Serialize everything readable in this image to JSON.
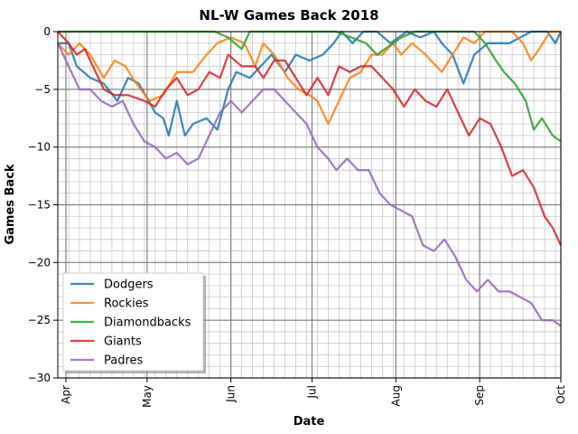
{
  "chart_data": {
    "type": "line",
    "title": "NL-W Games Back 2018",
    "xlabel": "Date",
    "ylabel": "Games Back",
    "x_ticks": [
      "Apr",
      "May",
      "Jun",
      "Jul",
      "Aug",
      "Sep",
      "Oct"
    ],
    "y_ticks": [
      0,
      -5,
      -10,
      -15,
      -20,
      -25,
      -30
    ],
    "ylim": [
      -30,
      0
    ],
    "grid": true,
    "legend_position": "bottom-left",
    "series": [
      {
        "name": "Dodgers",
        "color": "#1f77b4",
        "points": [
          [
            "2018-03-29",
            -1
          ],
          [
            "2018-04-02",
            -1
          ],
          [
            "2018-04-05",
            -3
          ],
          [
            "2018-04-10",
            -4
          ],
          [
            "2018-04-15",
            -4.5
          ],
          [
            "2018-04-20",
            -6
          ],
          [
            "2018-04-24",
            -4
          ],
          [
            "2018-04-28",
            -4.5
          ],
          [
            "2018-05-04",
            -7
          ],
          [
            "2018-05-07",
            -7.5
          ],
          [
            "2018-05-09",
            -9
          ],
          [
            "2018-05-12",
            -6
          ],
          [
            "2018-05-15",
            -9
          ],
          [
            "2018-05-18",
            -8
          ],
          [
            "2018-05-23",
            -7.5
          ],
          [
            "2018-05-27",
            -8.5
          ],
          [
            "2018-05-31",
            -5
          ],
          [
            "2018-06-03",
            -3.5
          ],
          [
            "2018-06-08",
            -4
          ],
          [
            "2018-06-12",
            -3
          ],
          [
            "2018-06-16",
            -2
          ],
          [
            "2018-06-21",
            -3.5
          ],
          [
            "2018-06-25",
            -2
          ],
          [
            "2018-06-30",
            -2.5
          ],
          [
            "2018-07-05",
            -2
          ],
          [
            "2018-07-09",
            -1
          ],
          [
            "2018-07-12",
            0
          ],
          [
            "2018-07-16",
            -1
          ],
          [
            "2018-07-20",
            0
          ],
          [
            "2018-07-25",
            0
          ],
          [
            "2018-07-30",
            -1
          ],
          [
            "2018-08-05",
            0
          ],
          [
            "2018-08-10",
            -0.5
          ],
          [
            "2018-08-15",
            0
          ],
          [
            "2018-08-18",
            -1
          ],
          [
            "2018-08-22",
            -2
          ],
          [
            "2018-08-26",
            -4.5
          ],
          [
            "2018-08-30",
            -2
          ],
          [
            "2018-09-04",
            -1
          ],
          [
            "2018-09-08",
            -1
          ],
          [
            "2018-09-12",
            -1
          ],
          [
            "2018-09-16",
            -0.5
          ],
          [
            "2018-09-20",
            0
          ],
          [
            "2018-09-26",
            0
          ],
          [
            "2018-09-29",
            -1
          ],
          [
            "2018-10-01",
            0
          ]
        ]
      },
      {
        "name": "Rockies",
        "color": "#ff7f0e",
        "points": [
          [
            "2018-03-29",
            -1
          ],
          [
            "2018-04-02",
            -2
          ],
          [
            "2018-04-06",
            -1
          ],
          [
            "2018-04-10",
            -2
          ],
          [
            "2018-04-15",
            -4
          ],
          [
            "2018-04-19",
            -2.5
          ],
          [
            "2018-04-23",
            -3
          ],
          [
            "2018-04-27",
            -4.5
          ],
          [
            "2018-05-02",
            -6
          ],
          [
            "2018-05-07",
            -5.5
          ],
          [
            "2018-05-12",
            -3.5
          ],
          [
            "2018-05-18",
            -3.5
          ],
          [
            "2018-05-23",
            -2
          ],
          [
            "2018-05-27",
            -1
          ],
          [
            "2018-06-01",
            -0.5
          ],
          [
            "2018-06-06",
            -1
          ],
          [
            "2018-06-10",
            -3
          ],
          [
            "2018-06-13",
            -1
          ],
          [
            "2018-06-17",
            -2
          ],
          [
            "2018-06-22",
            -4
          ],
          [
            "2018-06-26",
            -5
          ],
          [
            "2018-06-30",
            -5.5
          ],
          [
            "2018-07-03",
            -6
          ],
          [
            "2018-07-07",
            -8
          ],
          [
            "2018-07-11",
            -6
          ],
          [
            "2018-07-15",
            -4
          ],
          [
            "2018-07-19",
            -3.5
          ],
          [
            "2018-07-23",
            -2
          ],
          [
            "2018-07-27",
            -2
          ],
          [
            "2018-07-31",
            -1
          ],
          [
            "2018-08-03",
            -2
          ],
          [
            "2018-08-07",
            -1
          ],
          [
            "2018-08-12",
            -2
          ],
          [
            "2018-08-18",
            -3.5
          ],
          [
            "2018-08-22",
            -2
          ],
          [
            "2018-08-26",
            -0.5
          ],
          [
            "2018-08-30",
            -1
          ],
          [
            "2018-09-03",
            0
          ],
          [
            "2018-09-09",
            0
          ],
          [
            "2018-09-13",
            0
          ],
          [
            "2018-09-17",
            -1
          ],
          [
            "2018-09-20",
            -2.5
          ],
          [
            "2018-09-23",
            -1.5
          ],
          [
            "2018-09-27",
            0
          ],
          [
            "2018-10-01",
            0
          ]
        ]
      },
      {
        "name": "Diamondbacks",
        "color": "#2ca02c",
        "points": [
          [
            "2018-03-29",
            0
          ],
          [
            "2018-05-26",
            0
          ],
          [
            "2018-05-31",
            -0.5
          ],
          [
            "2018-06-05",
            -1.5
          ],
          [
            "2018-06-08",
            0
          ],
          [
            "2018-06-14",
            0
          ],
          [
            "2018-07-10",
            0
          ],
          [
            "2018-07-21",
            -1
          ],
          [
            "2018-07-25",
            -2
          ],
          [
            "2018-07-31",
            -1
          ],
          [
            "2018-08-03",
            -0.5
          ],
          [
            "2018-08-08",
            0
          ],
          [
            "2018-08-14",
            0
          ],
          [
            "2018-08-20",
            0
          ],
          [
            "2018-08-30",
            0
          ],
          [
            "2018-09-03",
            -1
          ],
          [
            "2018-09-07",
            -2.5
          ],
          [
            "2018-09-10",
            -3.5
          ],
          [
            "2018-09-14",
            -4.5
          ],
          [
            "2018-09-18",
            -6
          ],
          [
            "2018-09-21",
            -8.5
          ],
          [
            "2018-09-24",
            -7.5
          ],
          [
            "2018-09-28",
            -9
          ],
          [
            "2018-10-01",
            -9.5
          ]
        ]
      },
      {
        "name": "Giants",
        "color": "#d62728",
        "points": [
          [
            "2018-03-29",
            0
          ],
          [
            "2018-04-02",
            -1
          ],
          [
            "2018-04-05",
            -2
          ],
          [
            "2018-04-08",
            -1.5
          ],
          [
            "2018-04-11",
            -3
          ],
          [
            "2018-04-15",
            -5
          ],
          [
            "2018-04-19",
            -5.5
          ],
          [
            "2018-04-24",
            -5.5
          ],
          [
            "2018-04-30",
            -6
          ],
          [
            "2018-05-04",
            -6.5
          ],
          [
            "2018-05-08",
            -5
          ],
          [
            "2018-05-12",
            -4
          ],
          [
            "2018-05-16",
            -5.5
          ],
          [
            "2018-05-20",
            -5
          ],
          [
            "2018-05-24",
            -3.5
          ],
          [
            "2018-05-28",
            -4
          ],
          [
            "2018-05-31",
            -2
          ],
          [
            "2018-06-05",
            -3
          ],
          [
            "2018-06-10",
            -3
          ],
          [
            "2018-06-13",
            -4
          ],
          [
            "2018-06-17",
            -2.5
          ],
          [
            "2018-06-21",
            -2.5
          ],
          [
            "2018-06-25",
            -4
          ],
          [
            "2018-06-29",
            -5.5
          ],
          [
            "2018-07-03",
            -4
          ],
          [
            "2018-07-07",
            -5.5
          ],
          [
            "2018-07-11",
            -3
          ],
          [
            "2018-07-15",
            -3.5
          ],
          [
            "2018-07-19",
            -3
          ],
          [
            "2018-07-23",
            -3
          ],
          [
            "2018-07-27",
            -4
          ],
          [
            "2018-07-31",
            -5
          ],
          [
            "2018-08-04",
            -6.5
          ],
          [
            "2018-08-08",
            -5
          ],
          [
            "2018-08-12",
            -6
          ],
          [
            "2018-08-16",
            -6.5
          ],
          [
            "2018-08-20",
            -5
          ],
          [
            "2018-08-24",
            -7
          ],
          [
            "2018-08-28",
            -9
          ],
          [
            "2018-09-01",
            -7.5
          ],
          [
            "2018-09-05",
            -8
          ],
          [
            "2018-09-09",
            -10
          ],
          [
            "2018-09-13",
            -12.5
          ],
          [
            "2018-09-17",
            -12
          ],
          [
            "2018-09-21",
            -13.5
          ],
          [
            "2018-09-25",
            -16
          ],
          [
            "2018-09-28",
            -17
          ],
          [
            "2018-10-01",
            -18.5
          ]
        ]
      },
      {
        "name": "Padres",
        "color": "#9467bd",
        "points": [
          [
            "2018-03-29",
            -1
          ],
          [
            "2018-04-02",
            -3
          ],
          [
            "2018-04-06",
            -5
          ],
          [
            "2018-04-10",
            -5
          ],
          [
            "2018-04-14",
            -6
          ],
          [
            "2018-04-18",
            -6.5
          ],
          [
            "2018-04-22",
            -6
          ],
          [
            "2018-04-26",
            -8
          ],
          [
            "2018-04-30",
            -9.5
          ],
          [
            "2018-05-04",
            -10
          ],
          [
            "2018-05-08",
            -11
          ],
          [
            "2018-05-12",
            -10.5
          ],
          [
            "2018-05-16",
            -11.5
          ],
          [
            "2018-05-20",
            -11
          ],
          [
            "2018-05-24",
            -9
          ],
          [
            "2018-05-28",
            -7
          ],
          [
            "2018-06-01",
            -6
          ],
          [
            "2018-06-05",
            -7
          ],
          [
            "2018-06-09",
            -6
          ],
          [
            "2018-06-13",
            -5
          ],
          [
            "2018-06-17",
            -5
          ],
          [
            "2018-06-21",
            -6
          ],
          [
            "2018-06-25",
            -7
          ],
          [
            "2018-06-29",
            -8
          ],
          [
            "2018-07-03",
            -10
          ],
          [
            "2018-07-07",
            -11
          ],
          [
            "2018-07-10",
            -12
          ],
          [
            "2018-07-14",
            -11
          ],
          [
            "2018-07-18",
            -12
          ],
          [
            "2018-07-22",
            -12
          ],
          [
            "2018-07-26",
            -14
          ],
          [
            "2018-07-30",
            -15
          ],
          [
            "2018-08-03",
            -15.5
          ],
          [
            "2018-08-07",
            -16
          ],
          [
            "2018-08-11",
            -18.5
          ],
          [
            "2018-08-15",
            -19
          ],
          [
            "2018-08-19",
            -18
          ],
          [
            "2018-08-23",
            -19.5
          ],
          [
            "2018-08-27",
            -21.5
          ],
          [
            "2018-08-31",
            -22.5
          ],
          [
            "2018-09-04",
            -21.5
          ],
          [
            "2018-09-08",
            -22.5
          ],
          [
            "2018-09-12",
            -22.5
          ],
          [
            "2018-09-16",
            -23
          ],
          [
            "2018-09-20",
            -23.5
          ],
          [
            "2018-09-24",
            -25
          ],
          [
            "2018-09-28",
            -25
          ],
          [
            "2018-10-01",
            -25.5
          ]
        ]
      }
    ]
  }
}
